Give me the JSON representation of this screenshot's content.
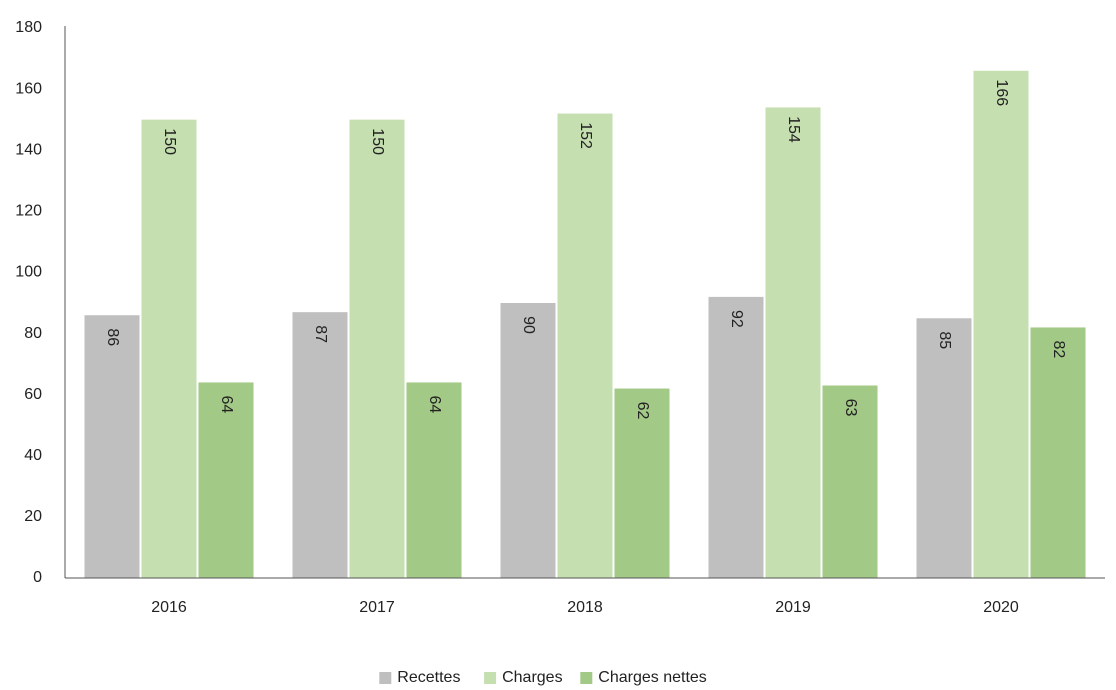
{
  "chart_data": {
    "type": "bar",
    "categories": [
      "2016",
      "2017",
      "2018",
      "2019",
      "2020"
    ],
    "series": [
      {
        "name": "Recettes",
        "color": "#bfbfbf",
        "values": [
          86,
          87,
          90,
          92,
          85
        ]
      },
      {
        "name": "Charges",
        "color": "#c5dfb0",
        "values": [
          150,
          150,
          152,
          154,
          166
        ]
      },
      {
        "name": "Charges nettes",
        "color": "#a2c986",
        "values": [
          64,
          64,
          62,
          63,
          82
        ]
      }
    ],
    "ylim": [
      0,
      180
    ],
    "yticks": [
      0,
      20,
      40,
      60,
      80,
      100,
      120,
      140,
      160,
      180
    ],
    "grid": false,
    "legend": "bottom"
  }
}
